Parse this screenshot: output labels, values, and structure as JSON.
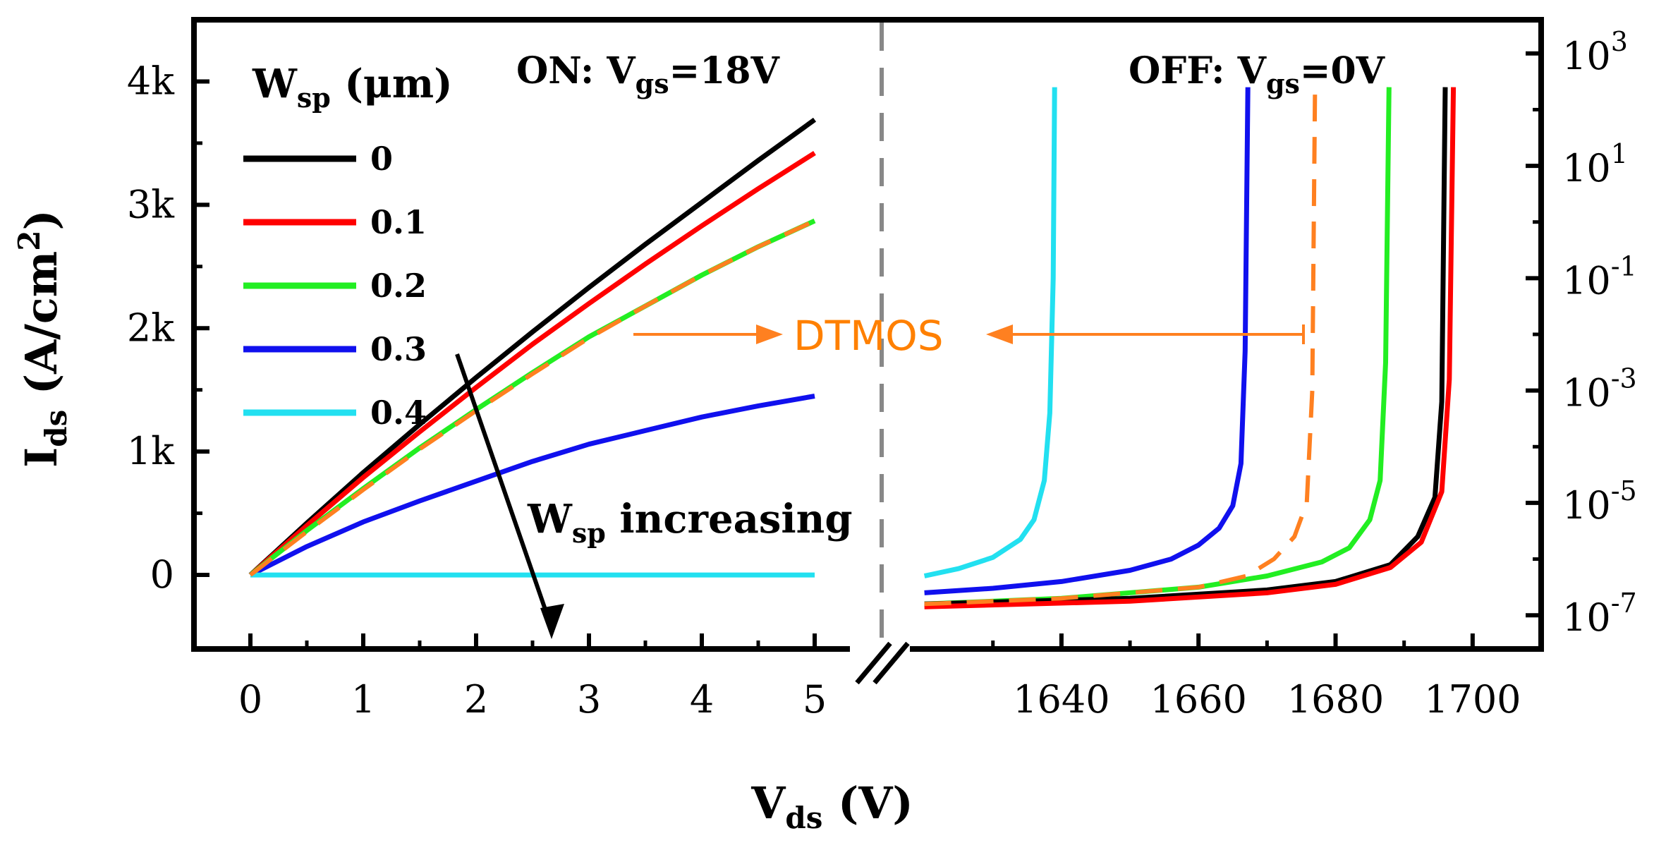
{
  "chart_data": {
    "type": "line",
    "on_panel": {
      "label": "ON: V",
      "label_sub": "gs",
      "label_tail": "=18V",
      "xlim": [
        -0.5,
        5.5
      ],
      "ylim": [
        -600,
        4500
      ],
      "xticks": [
        {
          "v": 0,
          "t": "0"
        },
        {
          "v": 1,
          "t": "1"
        },
        {
          "v": 2,
          "t": "2"
        },
        {
          "v": 3,
          "t": "3"
        },
        {
          "v": 4,
          "t": "4"
        },
        {
          "v": 5,
          "t": "5"
        }
      ],
      "yticks": [
        {
          "v": 0,
          "t": "0"
        },
        {
          "v": 1000,
          "t": "1k"
        },
        {
          "v": 2000,
          "t": "2k"
        },
        {
          "v": 3000,
          "t": "3k"
        },
        {
          "v": 4000,
          "t": "4k"
        }
      ],
      "series": [
        {
          "name": "0",
          "color": "#000000",
          "x": [
            0,
            0.5,
            1,
            1.5,
            2,
            2.5,
            3,
            3.5,
            4,
            4.5,
            5
          ],
          "y": [
            0,
            420,
            830,
            1220,
            1600,
            1970,
            2330,
            2680,
            3020,
            3360,
            3690
          ]
        },
        {
          "name": "0.1",
          "color": "#ff0000",
          "x": [
            0,
            0.5,
            1,
            1.5,
            2,
            2.5,
            3,
            3.5,
            4,
            4.5,
            5
          ],
          "y": [
            0,
            400,
            790,
            1160,
            1520,
            1870,
            2200,
            2520,
            2830,
            3130,
            3420
          ]
        },
        {
          "name": "0.2",
          "color": "#22ee22",
          "x": [
            0,
            0.5,
            1,
            1.5,
            2,
            2.5,
            3,
            3.5,
            4,
            4.5,
            5
          ],
          "y": [
            0,
            360,
            700,
            1030,
            1340,
            1640,
            1930,
            2180,
            2430,
            2660,
            2870
          ]
        },
        {
          "name": "0.3",
          "color": "#1010ee",
          "x": [
            0,
            0.5,
            1,
            1.5,
            2,
            2.5,
            3,
            3.5,
            4,
            4.5,
            5
          ],
          "y": [
            0,
            230,
            430,
            600,
            760,
            920,
            1060,
            1170,
            1280,
            1370,
            1450
          ]
        },
        {
          "name": "0.4",
          "color": "#22e0f0",
          "x": [
            0,
            1,
            2,
            3,
            4,
            5
          ],
          "y": [
            0,
            0,
            0,
            0,
            0,
            0
          ]
        },
        {
          "name": "DTMOS",
          "color": "#ff8020",
          "dashed": true,
          "x": [
            0,
            0.5,
            1,
            1.5,
            2,
            2.5,
            3,
            3.5,
            4,
            4.5,
            5
          ],
          "y": [
            0,
            350,
            690,
            1020,
            1330,
            1630,
            1920,
            2180,
            2430,
            2660,
            2870
          ]
        }
      ]
    },
    "off_panel": {
      "label": "OFF: V",
      "label_sub": "gs",
      "label_tail": "=0V",
      "xlim": [
        1615,
        1710
      ],
      "ylog10lim": [
        -7.6,
        3.6
      ],
      "xticks": [
        {
          "v": 1640,
          "t": "1640"
        },
        {
          "v": 1660,
          "t": "1660"
        },
        {
          "v": 1680,
          "t": "1680"
        },
        {
          "v": 1700,
          "t": "1700"
        }
      ],
      "xticks_minor": [
        1630,
        1650,
        1670,
        1690
      ],
      "yticks": [
        {
          "v": -7,
          "exp": "-7"
        },
        {
          "v": -5,
          "exp": "-5"
        },
        {
          "v": -3,
          "exp": "-3"
        },
        {
          "v": -1,
          "exp": "-1"
        },
        {
          "v": 1,
          "exp": "1"
        },
        {
          "v": 3,
          "exp": "3"
        }
      ],
      "series": [
        {
          "name": "0.4",
          "color": "#22e0f0",
          "x": [
            1620,
            1625,
            1630,
            1634,
            1636,
            1637.5,
            1638.3,
            1638.8,
            1639
          ],
          "log10y": [
            -6.3,
            -6.17,
            -5.97,
            -5.65,
            -5.3,
            -4.6,
            -3.4,
            -1.0,
            2.4
          ]
        },
        {
          "name": "0.3",
          "color": "#1010ee",
          "x": [
            1620,
            1630,
            1640,
            1650,
            1656,
            1660,
            1663,
            1665,
            1666.2,
            1666.8,
            1667.2
          ],
          "log10y": [
            -6.6,
            -6.52,
            -6.4,
            -6.2,
            -6.0,
            -5.75,
            -5.45,
            -5.05,
            -4.3,
            -2.3,
            2.4
          ]
        },
        {
          "name": "0.2",
          "color": "#22ee22",
          "x": [
            1620,
            1640,
            1660,
            1670,
            1678,
            1682,
            1685,
            1686.5,
            1687.3,
            1687.8
          ],
          "log10y": [
            -6.8,
            -6.7,
            -6.5,
            -6.3,
            -6.05,
            -5.8,
            -5.3,
            -4.6,
            -2.5,
            2.4
          ]
        },
        {
          "name": "0",
          "color": "#000000",
          "x": [
            1620,
            1650,
            1670,
            1680,
            1688,
            1692,
            1694.5,
            1695.5,
            1696
          ],
          "log10y": [
            -6.8,
            -6.7,
            -6.55,
            -6.4,
            -6.1,
            -5.6,
            -4.9,
            -3.2,
            2.4
          ]
        },
        {
          "name": "0.1",
          "color": "#ff0000",
          "x": [
            1620,
            1650,
            1670,
            1680,
            1688,
            1692.5,
            1695.5,
            1696.6,
            1697.2
          ],
          "log10y": [
            -6.85,
            -6.75,
            -6.6,
            -6.45,
            -6.15,
            -5.7,
            -4.8,
            -2.8,
            2.4
          ]
        },
        {
          "name": "DTMOS",
          "color": "#ff8020",
          "dashed": true,
          "x": [
            1620,
            1640,
            1660,
            1667,
            1671,
            1674,
            1675.8,
            1676.6,
            1677
          ],
          "log10y": [
            -6.8,
            -6.7,
            -6.5,
            -6.3,
            -6.0,
            -5.6,
            -5.0,
            -3.0,
            2.4
          ]
        }
      ]
    },
    "xlabel": "V",
    "xlabel_sub": "ds",
    "xlabel_tail": " (V)",
    "ylabel": "I",
    "ylabel_sub": "ds",
    "ylabel_tail": " (A/cm",
    "ylabel_sup": "2",
    "ylabel_close": ")",
    "legend": {
      "title": "W",
      "title_sub": "sp",
      "title_tail": " (μm)",
      "entries": [
        {
          "label": "0",
          "color": "#000000"
        },
        {
          "label": "0.1",
          "color": "#ff0000"
        },
        {
          "label": "0.2",
          "color": "#22ee22"
        },
        {
          "label": "0.3",
          "color": "#1010ee"
        },
        {
          "label": "0.4",
          "color": "#22e0f0"
        }
      ]
    },
    "annotations": {
      "trend": "W",
      "trend_sub": "sp",
      "trend_tail": " increasing",
      "dtmos": "DTMOS",
      "right_tick_base": "10"
    }
  }
}
